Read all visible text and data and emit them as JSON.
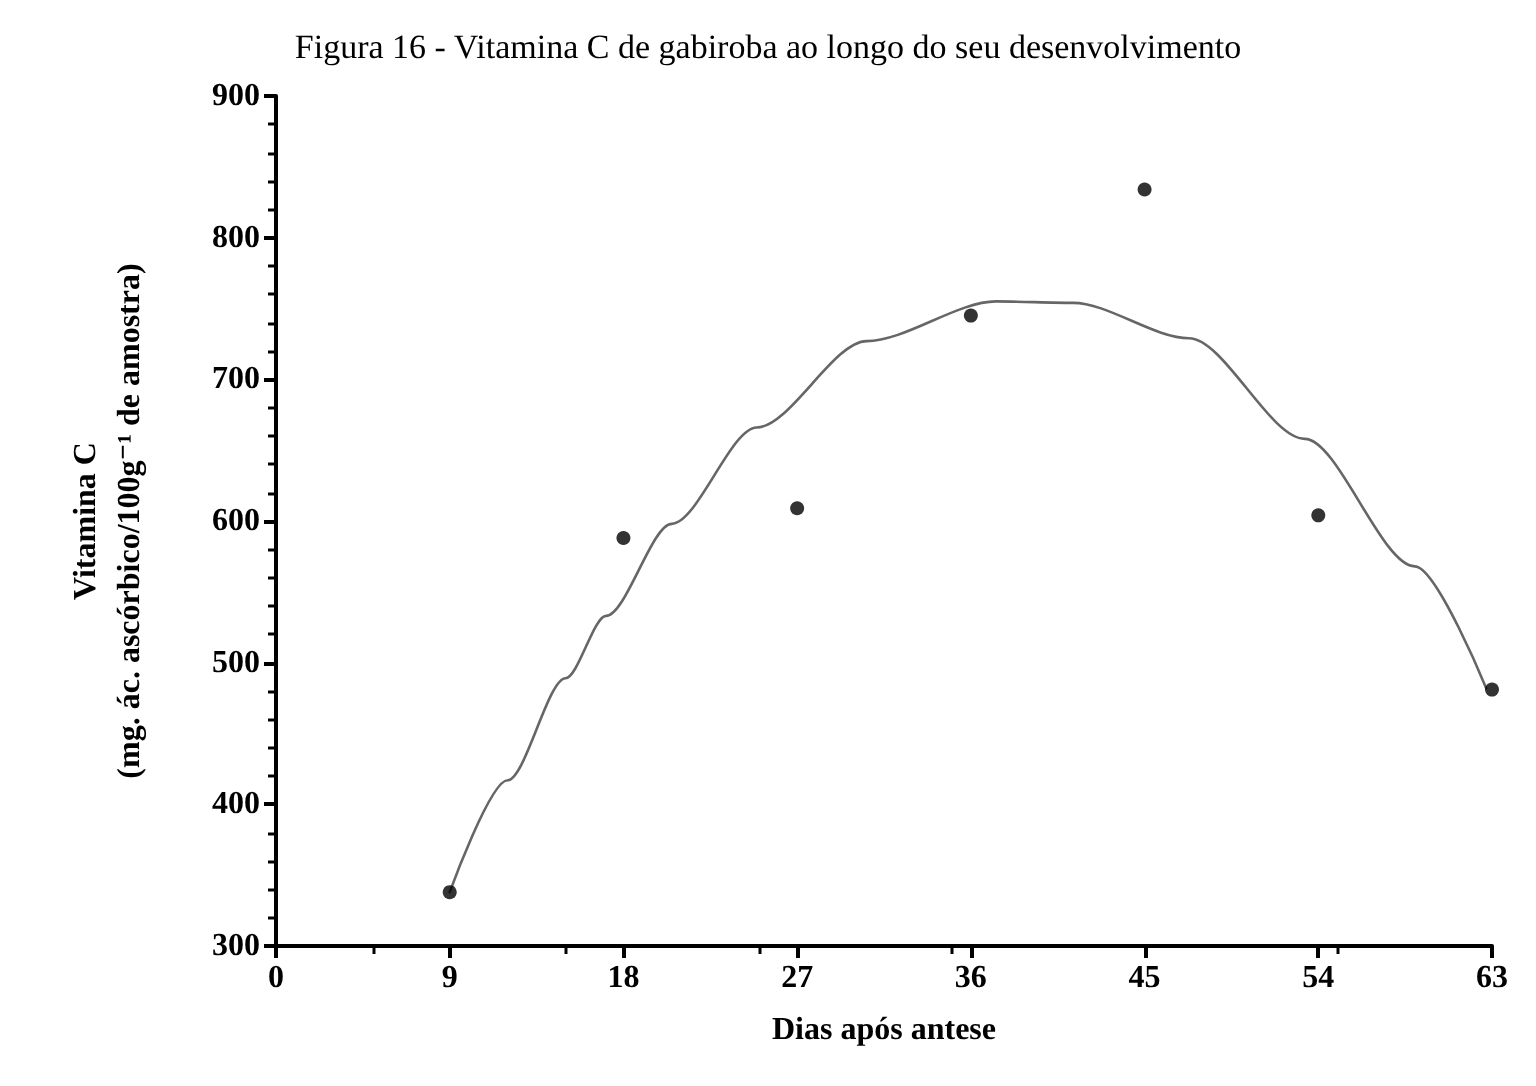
{
  "chart_data": {
    "type": "scatter",
    "title": "Figura 16 - Vitamina C de gabiroba ao longo do seu desenvolvimento",
    "xlabel": "Dias após antese",
    "ylabel": "Vitamina C\n(mg. ác. ascórbico/100g⁻¹ de amostra)",
    "x": [
      9,
      18,
      27,
      36,
      45,
      54,
      63
    ],
    "series": [
      {
        "color": "#000000",
        "values": [
          338,
          588,
          609,
          745,
          834,
          604,
          481
        ],
        "marker": "circle"
      },
      {
        "type": "line",
        "color": "#666666",
        "x": [
          9,
          12,
          15,
          17.1,
          20.5,
          24.9,
          30.6,
          37.3,
          41.3,
          47.3,
          53.3,
          59,
          62.7
        ],
        "values": [
          338,
          417,
          489,
          533,
          598,
          666,
          727,
          755,
          754,
          729,
          658,
          568,
          482
        ],
        "marker": "none",
        "line_style": "solid"
      }
    ],
    "xlim": [
      0,
      63
    ],
    "xticks": [
      0,
      9,
      18,
      27,
      36,
      45,
      54,
      63
    ],
    "ylim": [
      300,
      900
    ],
    "yticks": [
      300,
      400,
      500,
      600,
      700,
      800,
      900
    ],
    "grid": false
  }
}
